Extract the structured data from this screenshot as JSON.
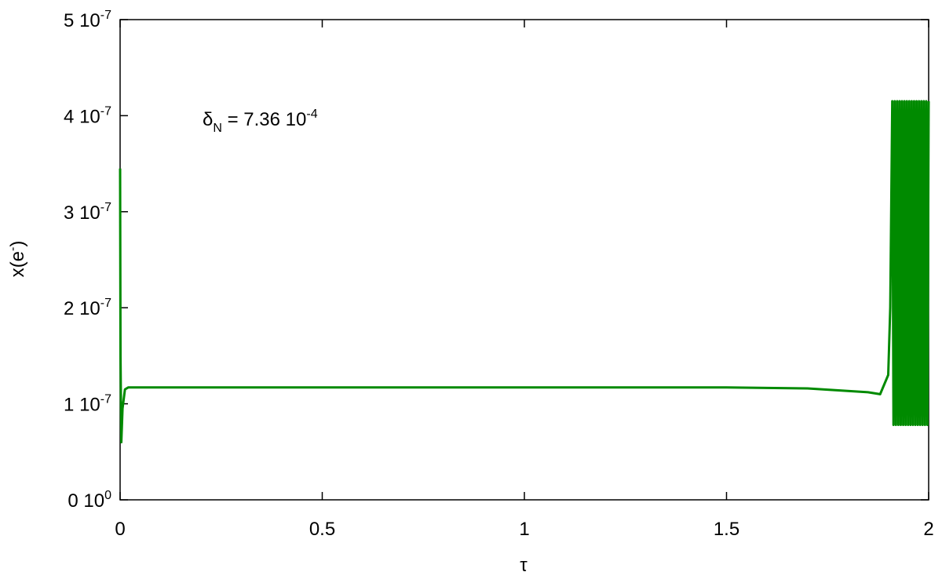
{
  "chart_data": {
    "type": "line",
    "x_label": "τ",
    "y_label": {
      "text": "x(e",
      "sup": "-",
      "end": ")"
    },
    "annotation": {
      "symbol": "δ",
      "sub": "N",
      "text": " = 7.36 10",
      "sup": "-4"
    },
    "xlim": [
      0,
      2
    ],
    "xticks": [
      0,
      0.5,
      1,
      1.5,
      2
    ],
    "ylim": [
      0,
      5e-07
    ],
    "yticks": [
      {
        "value": 0,
        "label": "0 10",
        "sup": "0"
      },
      {
        "value": 1e-07,
        "label": "1 10",
        "sup": "-7"
      },
      {
        "value": 2e-07,
        "label": "2 10",
        "sup": "-7"
      },
      {
        "value": 3e-07,
        "label": "3 10",
        "sup": "-7"
      },
      {
        "value": 4e-07,
        "label": "4 10",
        "sup": "-7"
      },
      {
        "value": 5e-07,
        "label": "5 10",
        "sup": "-7"
      }
    ],
    "grid": false,
    "series": [
      {
        "color": "#008a00",
        "x": [
          0,
          0.001,
          0.003,
          0.006,
          0.012,
          0.02,
          0.5,
          0.9,
          1.2,
          1.5,
          1.7,
          1.85,
          1.88,
          1.9,
          1.905,
          1.91,
          1.913,
          1.916,
          1.919,
          1.922,
          1.925,
          1.928,
          1.931,
          1.934,
          1.937,
          1.94,
          1.943,
          1.946,
          1.949,
          1.952,
          1.955,
          1.958,
          1.961,
          1.964,
          1.967,
          1.97,
          1.973,
          1.976,
          1.979,
          1.982,
          1.985,
          1.988,
          1.991,
          1.994,
          1.997,
          2.0
        ],
        "values": [
          3.45e-07,
          1.5e-07,
          6e-08,
          9.5e-08,
          1.15e-07,
          1.17e-07,
          1.17e-07,
          1.17e-07,
          1.17e-07,
          1.17e-07,
          1.16e-07,
          1.12e-07,
          1.1e-07,
          1.3e-07,
          2e-07,
          4.15e-07,
          7.8e-08,
          4.15e-07,
          7.8e-08,
          4.15e-07,
          7.8e-08,
          4.15e-07,
          7.8e-08,
          4.15e-07,
          7.8e-08,
          4.15e-07,
          7.8e-08,
          4.15e-07,
          7.8e-08,
          4.15e-07,
          7.8e-08,
          4.15e-07,
          7.8e-08,
          4.15e-07,
          7.8e-08,
          4.15e-07,
          7.8e-08,
          4.15e-07,
          7.8e-08,
          4.15e-07,
          7.8e-08,
          4.15e-07,
          7.8e-08,
          4.15e-07,
          7.8e-08,
          4.15e-07
        ]
      }
    ]
  }
}
